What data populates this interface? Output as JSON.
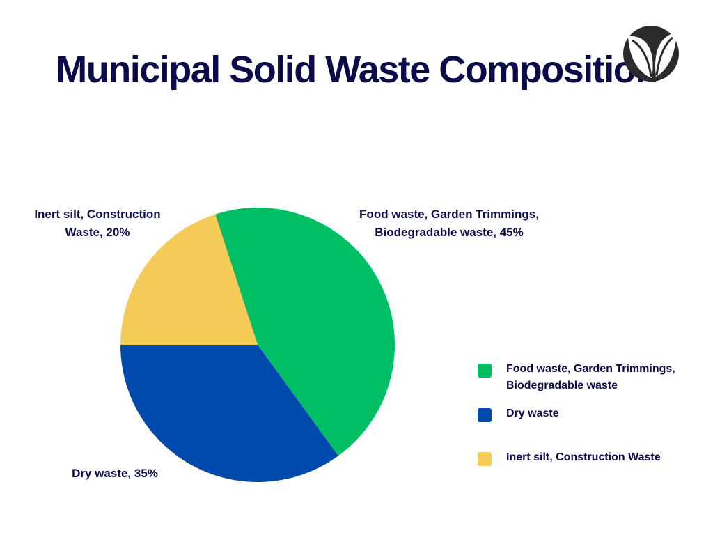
{
  "title": "Municipal Solid Waste Composition",
  "logo_icon": "leaf-logo-icon",
  "chart_data": {
    "type": "pie",
    "title": "Municipal Solid Waste Composition",
    "slices": [
      {
        "name": "Food waste, Garden Trimmings, Biodegradable waste",
        "label": "Food waste, Garden Trimmings, Biodegradable waste, 45%",
        "value": 45,
        "color": "#00be63"
      },
      {
        "name": "Dry waste",
        "label": "Dry waste, 35%",
        "value": 35,
        "color": "#004aad"
      },
      {
        "name": "Inert silt, Construction Waste",
        "label": "Inert silt, Construction Waste, 20%",
        "value": 20,
        "color": "#f5cb57"
      }
    ],
    "legend": {
      "placement": "right",
      "items": [
        {
          "label": "Food waste, Garden Trimmings, Biodegradable waste",
          "color": "#00be63"
        },
        {
          "label": "Dry waste",
          "color": "#004aad"
        },
        {
          "label": "Inert silt, Construction  Waste",
          "color": "#f5cb57"
        }
      ]
    }
  }
}
